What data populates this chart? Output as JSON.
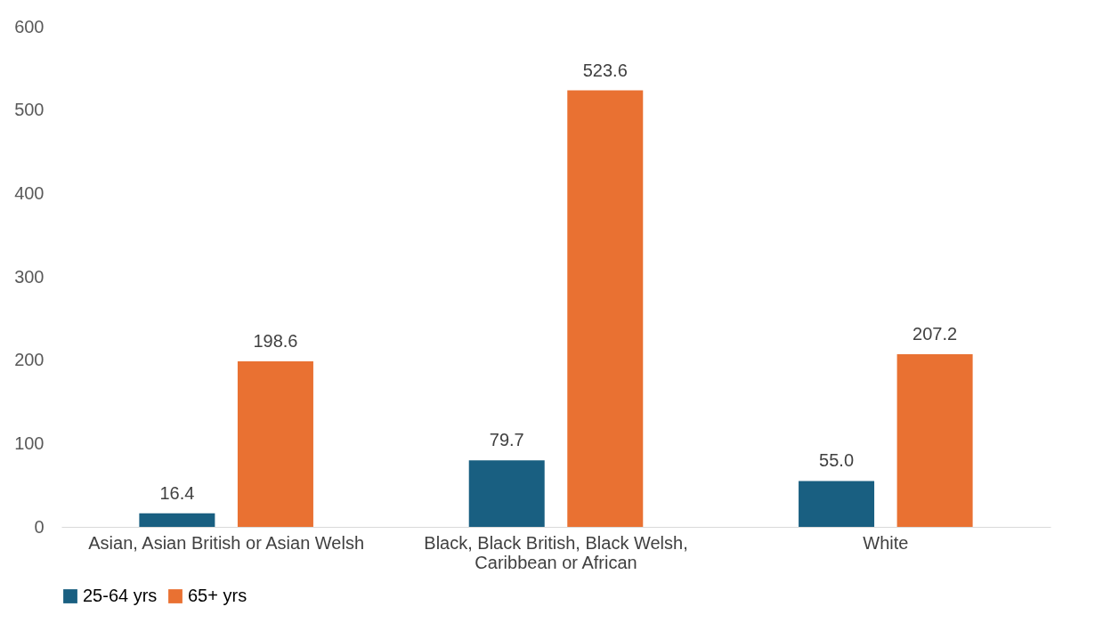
{
  "chart_data": {
    "type": "bar",
    "categories": [
      "Asian, Asian British or Asian Welsh",
      "Black, Black British, Black Welsh, Caribbean or African",
      "White"
    ],
    "series": [
      {
        "name": "25-64 yrs",
        "color": "#195f81",
        "values": [
          16.4,
          79.7,
          55.0
        ],
        "value_labels": [
          "16.4",
          "79.7",
          "55.0"
        ]
      },
      {
        "name": "65+ yrs",
        "color": "#e97132",
        "values": [
          198.6,
          523.6,
          207.2
        ],
        "value_labels": [
          "198.6",
          "523.6",
          "207.2"
        ]
      }
    ],
    "ylim": [
      0,
      600
    ],
    "yticks": [
      0,
      100,
      200,
      300,
      400,
      500,
      600
    ],
    "grid": false,
    "legend": "bottom"
  }
}
